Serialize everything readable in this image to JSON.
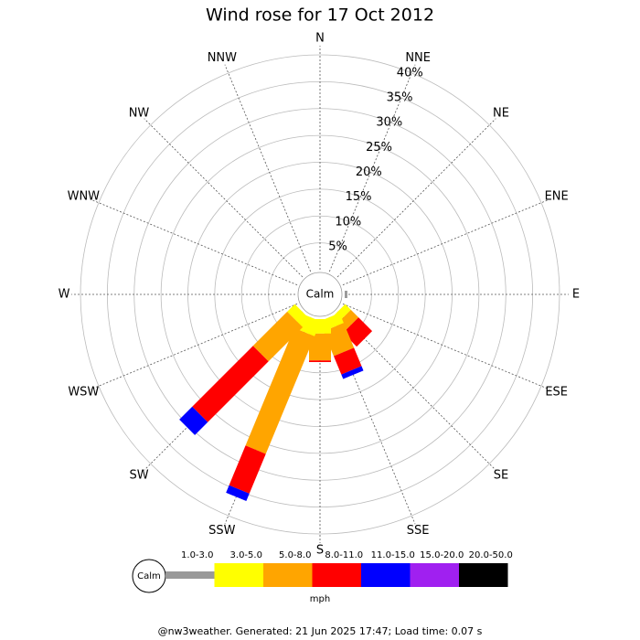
{
  "chart_data": {
    "type": "windrose",
    "title": "Wind rose for 17 Oct 2012",
    "calm_label": "Calm",
    "unit": "mph",
    "footer": "@nw3weather. Generated: 21 Jun 2025 17:47; Load time: 0.07 s",
    "categories": [
      "N",
      "NNE",
      "NE",
      "ENE",
      "E",
      "ESE",
      "SE",
      "SSE",
      "S",
      "SSW",
      "SW",
      "WSW",
      "W",
      "WNW",
      "NW",
      "NNW"
    ],
    "series": [
      {
        "name": "1.0-3.0",
        "color": "#999999",
        "values": [
          0,
          0,
          0,
          0,
          0.5,
          0,
          0,
          0,
          0,
          0,
          0,
          0,
          0,
          0,
          0,
          0
        ]
      },
      {
        "name": "3.0-5.0",
        "color": "#ffff00",
        "values": [
          0,
          0,
          0,
          0,
          0,
          0,
          1.5,
          2,
          2.7,
          3,
          2,
          0,
          0,
          0,
          0,
          0
        ]
      },
      {
        "name": "5.0-8.0",
        "color": "#ffa500",
        "values": [
          0,
          0,
          0,
          0,
          0,
          0,
          2,
          5,
          5,
          23.7,
          9,
          0,
          0,
          0,
          0,
          0
        ]
      },
      {
        "name": "8.0-11.0",
        "color": "#ff0000",
        "values": [
          0,
          0,
          0,
          0,
          0,
          0,
          3.6,
          3.7,
          0.3,
          8,
          16,
          0,
          0,
          0,
          0,
          0
        ]
      },
      {
        "name": "11.0-15.0",
        "color": "#0000ff",
        "values": [
          0,
          0,
          0,
          0,
          0,
          0,
          0,
          0.9,
          0,
          1.5,
          3.4,
          0,
          0,
          0,
          0,
          0
        ]
      },
      {
        "name": "15.0-20.0",
        "color": "#a020f0",
        "values": [
          0,
          0,
          0,
          0,
          0,
          0,
          0,
          0,
          0,
          0,
          0,
          0,
          0,
          0,
          0,
          0
        ]
      },
      {
        "name": "20.0-50.0",
        "color": "#000000",
        "values": [
          0,
          0,
          0,
          0,
          0,
          0,
          0,
          0,
          0,
          0,
          0,
          0,
          0,
          0,
          0,
          0
        ]
      }
    ],
    "ylim": [
      0,
      40
    ],
    "yticks": [
      {
        "value": 5,
        "label": "5%"
      },
      {
        "value": 10,
        "label": "10%"
      },
      {
        "value": 15,
        "label": "15%"
      },
      {
        "value": 20,
        "label": "20%"
      },
      {
        "value": 25,
        "label": "25%"
      },
      {
        "value": 30,
        "label": "30%"
      },
      {
        "value": 35,
        "label": "35%"
      },
      {
        "value": 40,
        "label": "40%"
      }
    ]
  }
}
